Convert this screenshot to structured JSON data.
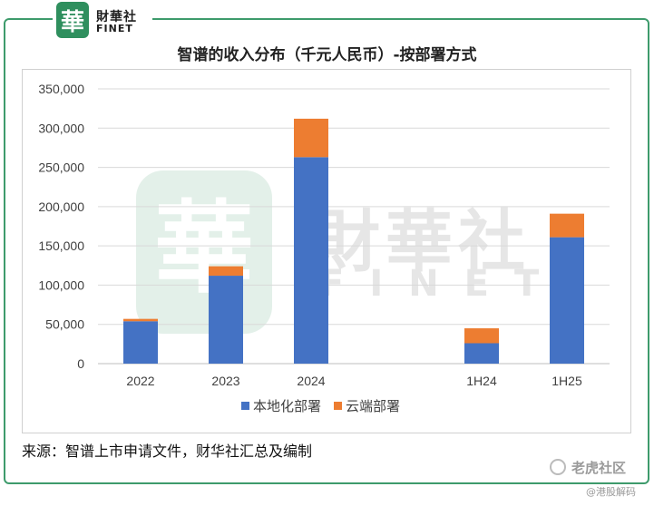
{
  "brand": {
    "badge_char": "華",
    "name_cn": "財華社",
    "name_en": "FINET",
    "colors": {
      "brand_green": "#2f8f5e",
      "frame_green": "#3e9b6c"
    }
  },
  "chart_data": {
    "type": "bar",
    "stacked": true,
    "title": "智谱的收入分布（千元人民币）-按部署方式",
    "categories": [
      "2022",
      "2023",
      "2024",
      "",
      "1H24",
      "1H25"
    ],
    "series": [
      {
        "name": "本地化部署",
        "color": "#4472c4",
        "values": [
          54000,
          112000,
          263000,
          null,
          26000,
          161000
        ]
      },
      {
        "name": "云端部署",
        "color": "#ed7d31",
        "values": [
          3000,
          12000,
          49000,
          null,
          19000,
          30000
        ]
      }
    ],
    "y_ticks": [
      "0",
      "50,000",
      "100,000",
      "150,000",
      "200,000",
      "250,000",
      "300,000",
      "350,000"
    ],
    "ylim": [
      0,
      350000
    ],
    "grid": true,
    "legend_position": "bottom-center"
  },
  "watermark": {
    "cn": "財華社",
    "en": "FINET"
  },
  "source_text": "来源：智谱上市申请文件，财华社汇总及编制",
  "corner_watermark": {
    "main": "老虎社区",
    "sub": "@港股解码"
  }
}
